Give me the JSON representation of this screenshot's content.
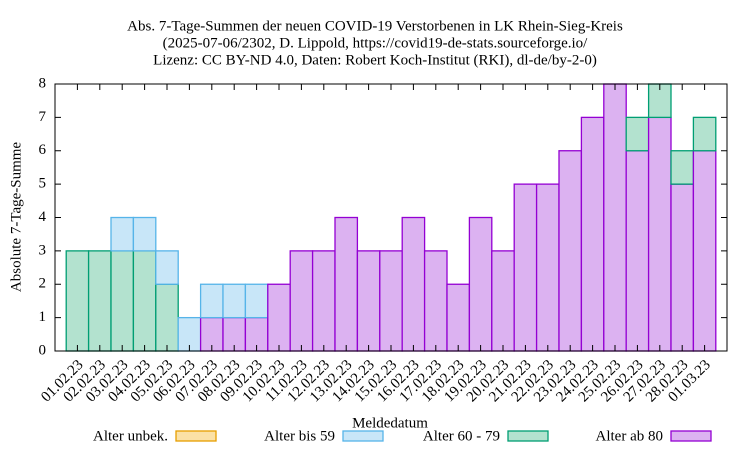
{
  "chart_data": {
    "type": "bar",
    "title": "Abs. 7-Tage-Summen der neuen COVID-19 Verstorbenen in LK Rhein-Sieg-Kreis",
    "subtitle": "(2025-07-06/2302, D. Lippold, https://covid19-de-stats.sourceforge.io/",
    "license": "Lizenz: CC BY-ND 4.0, Daten: Robert Koch-Institut (RKI), dl-de/by-2-0)",
    "x_label": "Meldedatum",
    "y_label": "Absolute 7-Tage-Summe",
    "stacked": true,
    "categories": [
      "01.02.23",
      "02.02.23",
      "03.02.23",
      "04.02.23",
      "05.02.23",
      "06.02.23",
      "07.02.23",
      "08.02.23",
      "09.02.23",
      "10.02.23",
      "11.02.23",
      "12.02.23",
      "13.02.23",
      "14.02.23",
      "15.02.23",
      "16.02.23",
      "17.02.23",
      "18.02.23",
      "19.02.23",
      "20.02.23",
      "21.02.23",
      "22.02.23",
      "23.02.23",
      "24.02.23",
      "25.02.23",
      "26.02.23",
      "27.02.23",
      "28.02.23",
      "01.03.23"
    ],
    "series": [
      {
        "name": "Alter unbek.",
        "color": "#fbe1a6",
        "edge": "#e69f00",
        "values": [
          0,
          0,
          0,
          0,
          0,
          0,
          0,
          0,
          0,
          0,
          0,
          0,
          0,
          0,
          0,
          0,
          0,
          0,
          0,
          0,
          0,
          0,
          0,
          0,
          0,
          0,
          0,
          0,
          0
        ]
      },
      {
        "name": "Alter bis 59",
        "color": "#c8e6f8",
        "edge": "#56b4e9",
        "values": [
          0,
          0,
          1,
          1,
          1,
          1,
          1,
          1,
          1,
          0,
          0,
          0,
          0,
          0,
          0,
          0,
          0,
          0,
          0,
          0,
          0,
          0,
          0,
          0,
          0,
          0,
          0,
          0,
          0
        ]
      },
      {
        "name": "Alter 60 - 79",
        "color": "#b3e2cf",
        "edge": "#009e73",
        "values": [
          3,
          3,
          3,
          3,
          2,
          0,
          0,
          0,
          0,
          0,
          0,
          0,
          0,
          0,
          0,
          0,
          0,
          0,
          0,
          0,
          0,
          0,
          0,
          0,
          0,
          1,
          1,
          1,
          1
        ]
      },
      {
        "name": "Alter ab 80",
        "color": "#dcb2f1",
        "edge": "#9400d3",
        "values": [
          0,
          0,
          0,
          0,
          0,
          0,
          1,
          1,
          1,
          2,
          3,
          3,
          4,
          3,
          3,
          4,
          3,
          2,
          4,
          3,
          5,
          5,
          6,
          7,
          8,
          6,
          7,
          5,
          6
        ]
      }
    ],
    "ylim": [
      0,
      8
    ],
    "yticks": [
      0,
      1,
      2,
      3,
      4,
      5,
      6,
      7,
      8
    ]
  }
}
